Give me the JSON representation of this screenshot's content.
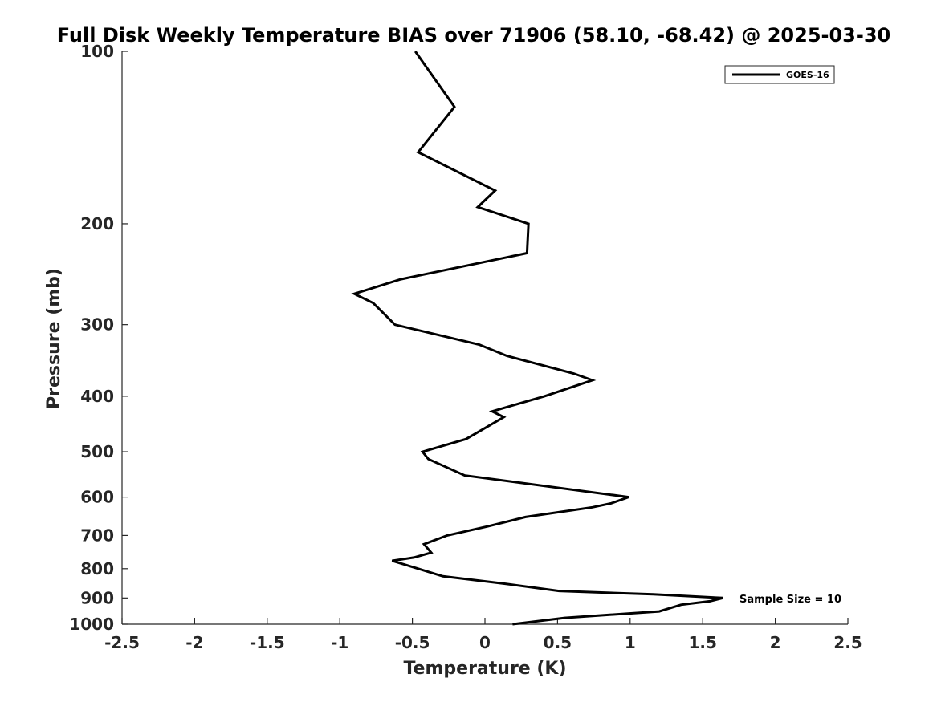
{
  "chart_data": {
    "type": "line",
    "title": "Full Disk Weekly Temperature BIAS over 71906 (58.10, -68.42) @ 2025-03-30",
    "xlabel": "Temperature (K)",
    "ylabel": "Pressure (mb)",
    "xlim": [
      -2.5,
      2.5
    ],
    "ylim": [
      1000,
      100
    ],
    "yscale": "log",
    "xticks": [
      -2.5,
      -2,
      -1.5,
      -1,
      -0.5,
      0,
      0.5,
      1,
      1.5,
      2,
      2.5
    ],
    "xtick_labels": [
      "-2.5",
      "-2",
      "-1.5",
      "-1",
      "-0.5",
      "0",
      "0.5",
      "1",
      "1.5",
      "2",
      "2.5"
    ],
    "yticks": [
      100,
      200,
      300,
      400,
      500,
      600,
      700,
      800,
      900,
      1000
    ],
    "ytick_labels": [
      "100",
      "200",
      "300",
      "400",
      "500",
      "600",
      "700",
      "800",
      "900",
      "1000"
    ],
    "grid": false,
    "legend_position": "top-right",
    "annotation": "Sample Size = 10",
    "series": [
      {
        "name": "GOES-16",
        "color": "#000000",
        "points": [
          {
            "x": -0.48,
            "p": 100
          },
          {
            "x": -0.21,
            "p": 125
          },
          {
            "x": -0.46,
            "p": 150
          },
          {
            "x": 0.07,
            "p": 175
          },
          {
            "x": -0.05,
            "p": 187
          },
          {
            "x": 0.3,
            "p": 200
          },
          {
            "x": 0.29,
            "p": 225
          },
          {
            "x": -0.58,
            "p": 250
          },
          {
            "x": -0.9,
            "p": 265
          },
          {
            "x": -0.77,
            "p": 275
          },
          {
            "x": -0.62,
            "p": 300
          },
          {
            "x": -0.04,
            "p": 325
          },
          {
            "x": 0.15,
            "p": 340
          },
          {
            "x": 0.61,
            "p": 365
          },
          {
            "x": 0.74,
            "p": 375
          },
          {
            "x": 0.41,
            "p": 400
          },
          {
            "x": 0.05,
            "p": 425
          },
          {
            "x": 0.13,
            "p": 435
          },
          {
            "x": 0.03,
            "p": 450
          },
          {
            "x": -0.13,
            "p": 475
          },
          {
            "x": -0.43,
            "p": 500
          },
          {
            "x": -0.39,
            "p": 515
          },
          {
            "x": -0.14,
            "p": 550
          },
          {
            "x": 0.99,
            "p": 600
          },
          {
            "x": 0.87,
            "p": 615
          },
          {
            "x": 0.74,
            "p": 625
          },
          {
            "x": 0.28,
            "p": 650
          },
          {
            "x": 0.02,
            "p": 675
          },
          {
            "x": -0.26,
            "p": 700
          },
          {
            "x": -0.42,
            "p": 725
          },
          {
            "x": -0.37,
            "p": 750
          },
          {
            "x": -0.49,
            "p": 765
          },
          {
            "x": -0.64,
            "p": 775
          },
          {
            "x": -0.46,
            "p": 800
          },
          {
            "x": -0.29,
            "p": 825
          },
          {
            "x": 0.14,
            "p": 850
          },
          {
            "x": 0.51,
            "p": 875
          },
          {
            "x": 1.16,
            "p": 887
          },
          {
            "x": 1.64,
            "p": 900
          },
          {
            "x": 1.55,
            "p": 912
          },
          {
            "x": 1.35,
            "p": 925
          },
          {
            "x": 1.2,
            "p": 950
          },
          {
            "x": 0.55,
            "p": 975
          },
          {
            "x": 0.19,
            "p": 1000
          }
        ]
      }
    ]
  }
}
